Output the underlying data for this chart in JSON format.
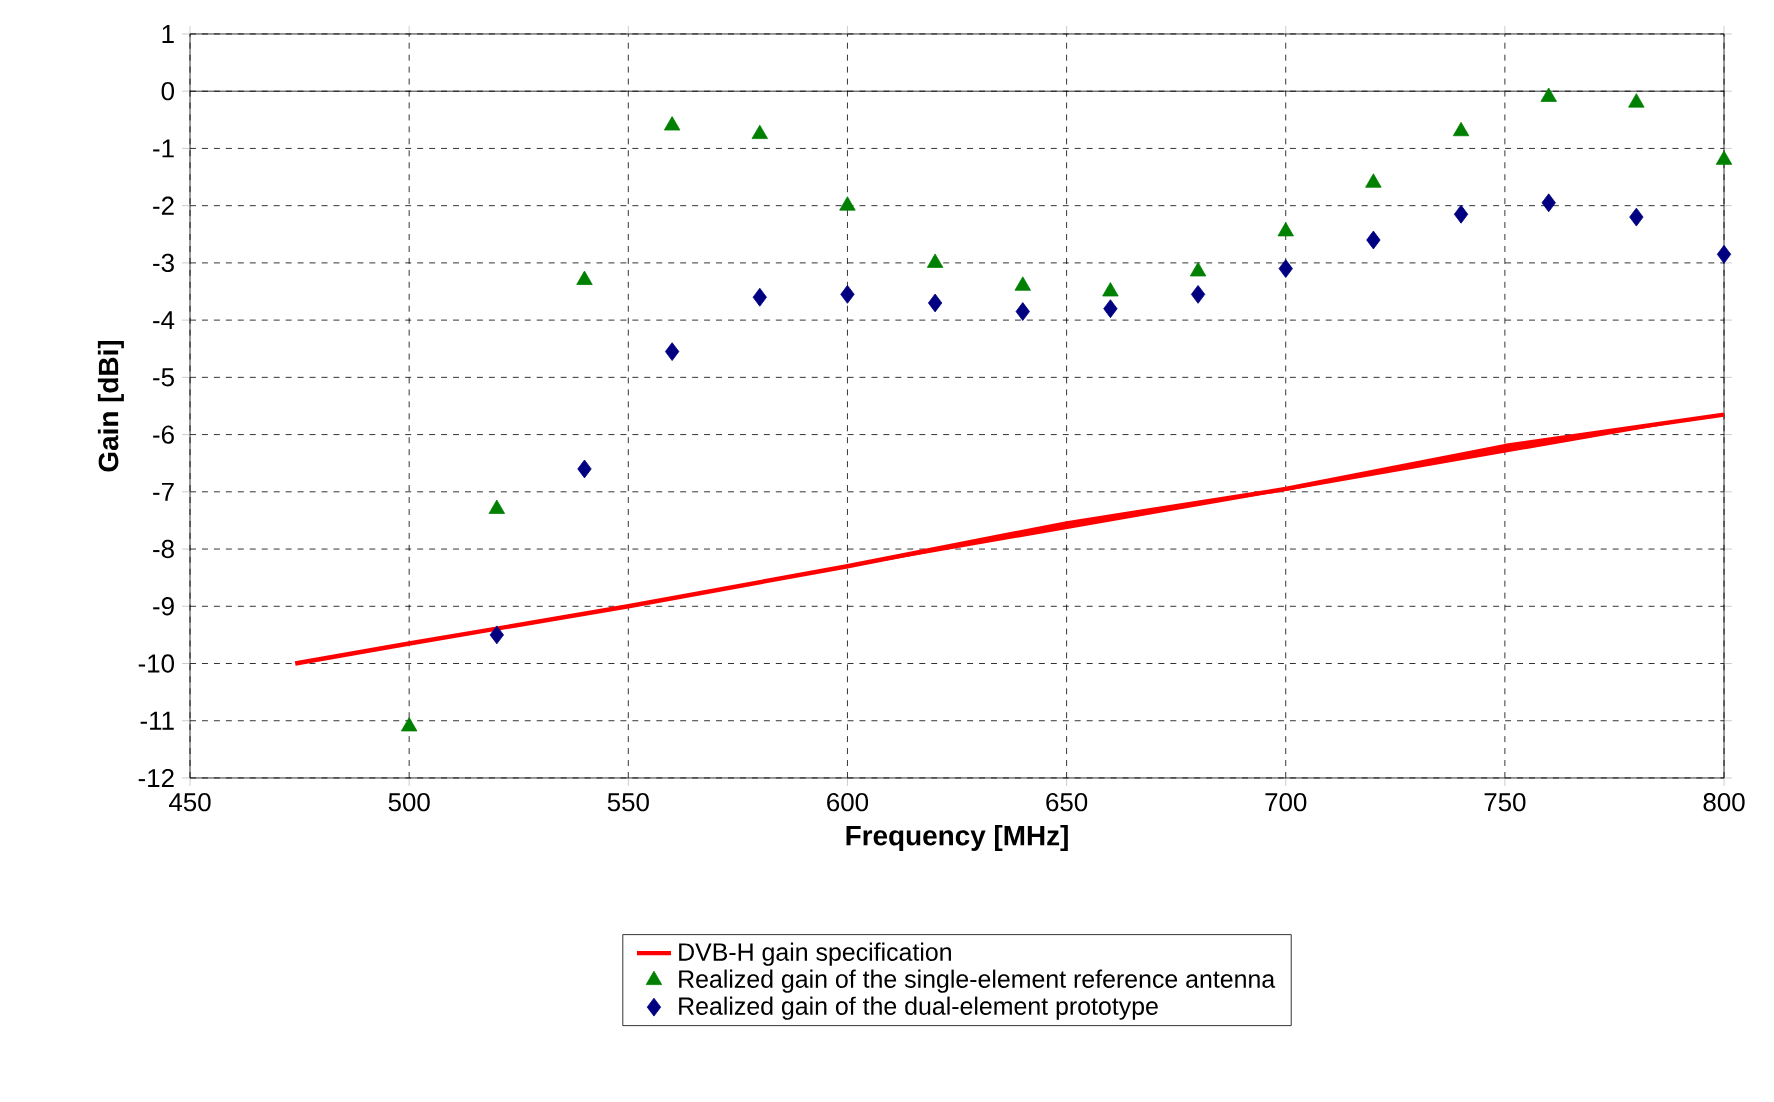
{
  "chart_data": {
    "type": "scatter",
    "xlabel": "Frequency [MHz]",
    "ylabel": "Gain [dBi]",
    "xlim": [
      450,
      800
    ],
    "ylim": [
      -12,
      1
    ],
    "xticks": [
      450,
      500,
      550,
      600,
      650,
      700,
      750,
      800
    ],
    "yticks": [
      -12,
      -11,
      -10,
      -9,
      -8,
      -7,
      -6,
      -5,
      -4,
      -3,
      -2,
      -1,
      0,
      1
    ],
    "grid": true,
    "legend": "bottom",
    "ref_lines": [
      {
        "axis": "y",
        "value": 0,
        "color": "#000000",
        "line_style": "solid"
      }
    ],
    "series": [
      {
        "name": "DVB-H gain specification",
        "type": "line",
        "color": "#ff0000",
        "marker": "none",
        "line_style": "solid",
        "x": [
          474,
          500,
          550,
          600,
          650,
          700,
          750,
          800
        ],
        "values": [
          -10.0,
          -9.65,
          -9.0,
          -8.3,
          -7.55,
          -6.95,
          -6.2,
          -5.65
        ]
      },
      {
        "name": "Realized gain of the single-element reference antenna",
        "color": "#008000",
        "marker": "triangle",
        "x": [
          500,
          520,
          540,
          560,
          580,
          600,
          620,
          640,
          660,
          680,
          700,
          720,
          740,
          760,
          780,
          800
        ],
        "values": [
          -11.1,
          -7.3,
          -3.3,
          -0.6,
          -0.75,
          -2.0,
          -3.0,
          -3.4,
          -3.5,
          -3.15,
          -2.45,
          -1.6,
          -0.7,
          -0.1,
          -0.2,
          -1.2
        ]
      },
      {
        "name": "Realized gain of the dual-element prototype",
        "color": "#000080",
        "marker": "diamond",
        "x": [
          520,
          540,
          560,
          580,
          600,
          620,
          640,
          660,
          680,
          700,
          720,
          740,
          760,
          780,
          800
        ],
        "values": [
          -9.5,
          -6.6,
          -4.55,
          -3.6,
          -3.55,
          -3.7,
          -3.85,
          -3.8,
          -3.55,
          -3.1,
          -2.6,
          -2.15,
          -1.95,
          -2.2,
          -2.85
        ]
      }
    ]
  }
}
